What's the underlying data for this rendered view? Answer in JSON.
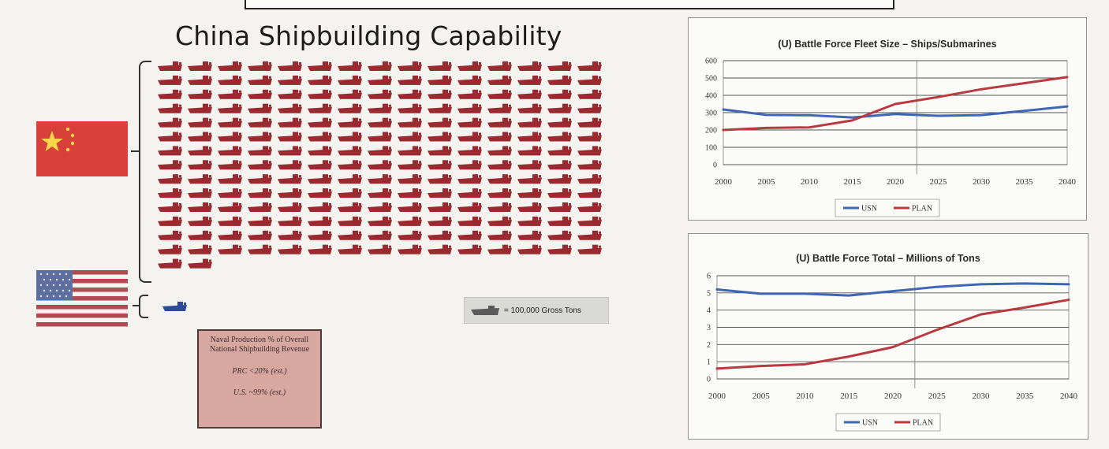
{
  "title": "China Shipbuilding Capability",
  "ships": {
    "china_count": 212,
    "us_count": 1,
    "key_label": "= 100,000 Gross Tons",
    "color": "#9b2a30",
    "us_color": "#2d4a9a"
  },
  "naval_box": {
    "title": "Naval Production % of Overall National Shipbuilding Revenue",
    "prc": "PRC <20% (est.)",
    "us": "U.S. ~99% (est.)"
  },
  "chart_data": [
    {
      "type": "line",
      "title": "(U) Battle Force Fleet Size – Ships/Submarines",
      "x": [
        "2000",
        "2005",
        "2010",
        "2015",
        "2020",
        "2025",
        "2030",
        "2035",
        "2040"
      ],
      "ylim": [
        0,
        600
      ],
      "yticks": [
        0,
        100,
        200,
        300,
        400,
        500,
        600
      ],
      "grid": true,
      "legend": "bottom",
      "divider_x": 2022.5,
      "series": [
        {
          "name": "USN",
          "color": "#3f66b4",
          "values": [
            318,
            287,
            285,
            272,
            292,
            282,
            286,
            310,
            336
          ]
        },
        {
          "name": "PLAN",
          "color": "#b83a40",
          "values": [
            200,
            212,
            215,
            255,
            350,
            390,
            435,
            470,
            505
          ]
        }
      ]
    },
    {
      "type": "line",
      "title": "(U) Battle Force Total – Millions of Tons",
      "x": [
        "2000",
        "2005",
        "2010",
        "2015",
        "2020",
        "2025",
        "2030",
        "2035",
        "2040"
      ],
      "ylim": [
        0,
        6
      ],
      "yticks": [
        0,
        1,
        2,
        3,
        4,
        5,
        6
      ],
      "grid": true,
      "legend": "bottom",
      "divider_x": 2022.5,
      "series": [
        {
          "name": "USN",
          "color": "#3f66b4",
          "values": [
            5.2,
            4.95,
            4.95,
            4.85,
            5.1,
            5.35,
            5.5,
            5.55,
            5.5
          ]
        },
        {
          "name": "PLAN",
          "color": "#b83a40",
          "values": [
            0.6,
            0.75,
            0.85,
            1.3,
            1.85,
            2.85,
            3.75,
            4.15,
            4.6
          ]
        }
      ]
    }
  ]
}
